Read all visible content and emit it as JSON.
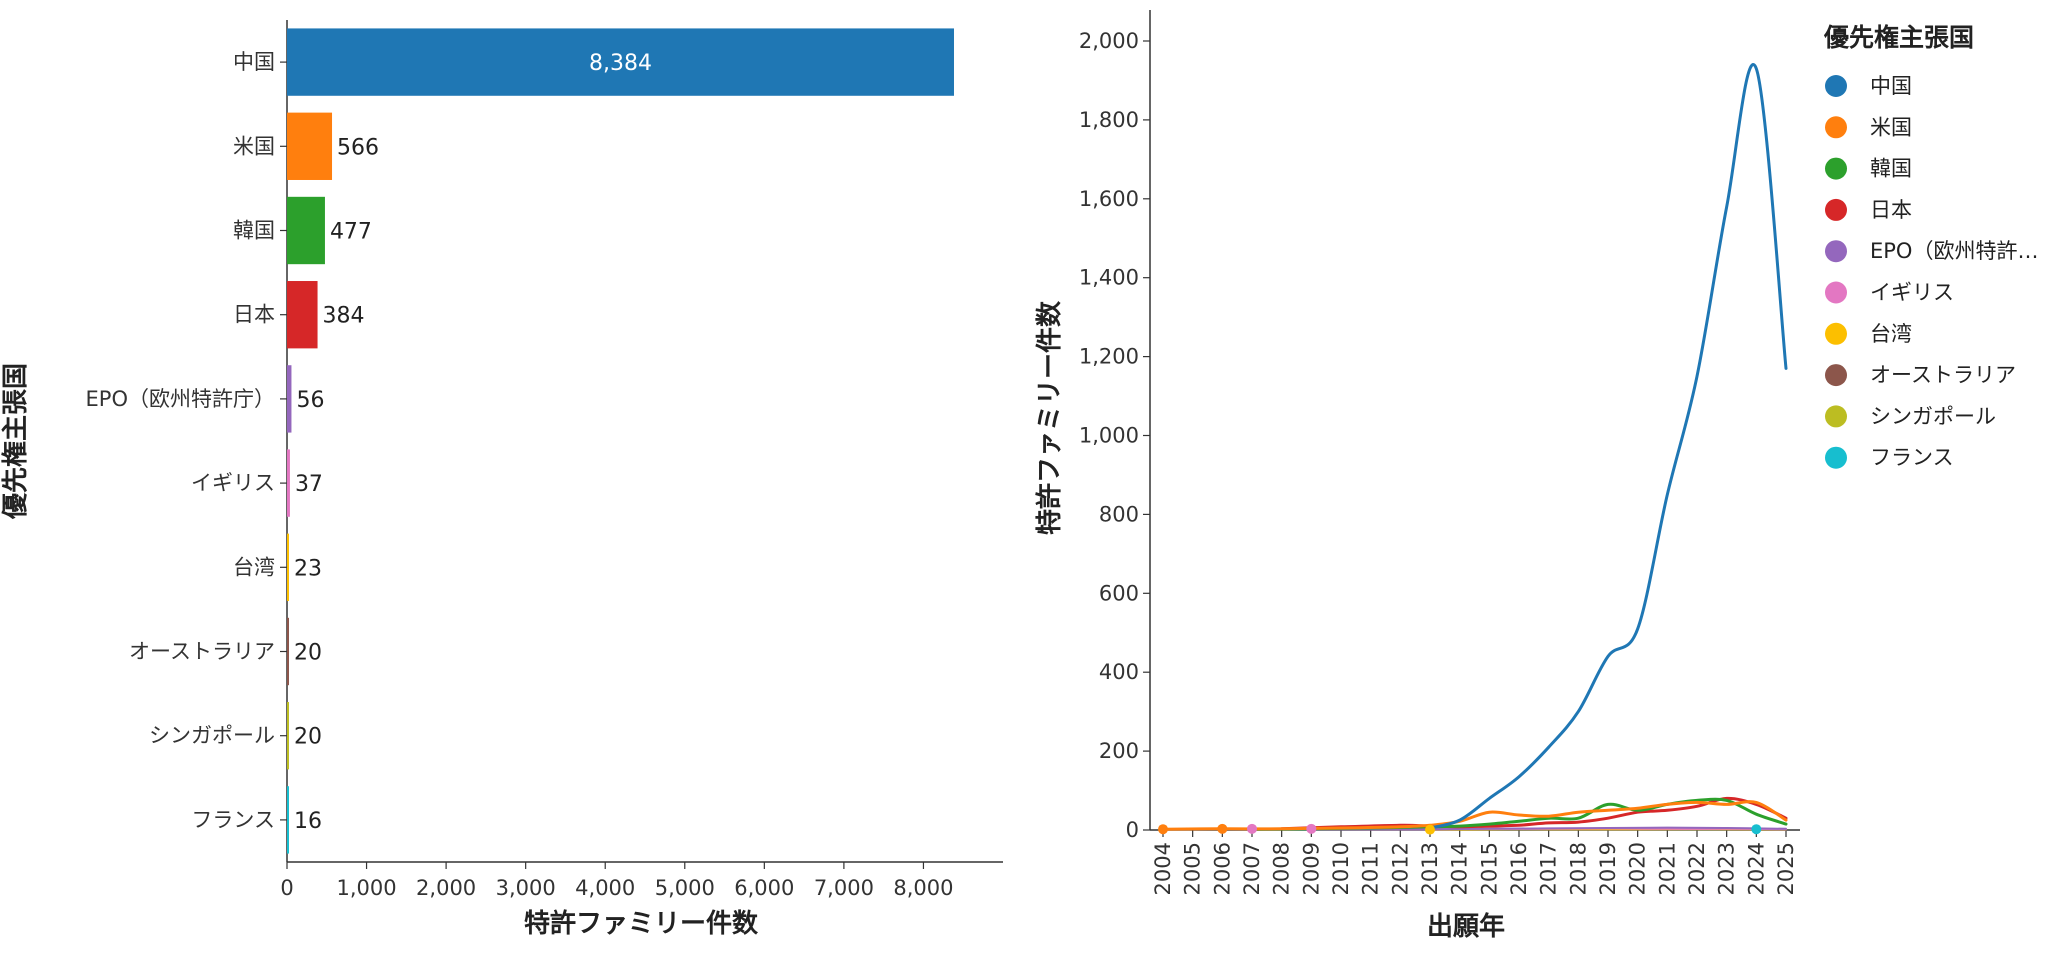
{
  "chart_data": [
    {
      "type": "bar",
      "orientation": "horizontal",
      "categories": [
        "中国",
        "米国",
        "韓国",
        "日本",
        "EPO（欧州特許庁）",
        "イギリス",
        "台湾",
        "オーストラリア",
        "シンガポール",
        "フランス"
      ],
      "values": [
        8384,
        566,
        477,
        384,
        56,
        37,
        23,
        20,
        20,
        16
      ],
      "value_labels": [
        "8,384",
        "566",
        "477",
        "384",
        "56",
        "37",
        "23",
        "20",
        "20",
        "16"
      ],
      "colors": [
        "#1f77b4",
        "#ff7f0e",
        "#2ca02c",
        "#d62728",
        "#9467bd",
        "#e377c2",
        "#fcbf00",
        "#8c564b",
        "#bcbd22",
        "#17becf"
      ],
      "xlabel": "特許ファミリー件数",
      "ylabel": "優先権主張国",
      "xlim": [
        0,
        9000
      ],
      "xticks": [
        0,
        1000,
        2000,
        3000,
        4000,
        5000,
        6000,
        7000,
        8000
      ],
      "xtick_labels": [
        "0",
        "1,000",
        "2,000",
        "3,000",
        "4,000",
        "5,000",
        "6,000",
        "7,000",
        "8,000"
      ]
    },
    {
      "type": "line",
      "x": [
        2004,
        2005,
        2006,
        2007,
        2008,
        2009,
        2010,
        2011,
        2012,
        2013,
        2014,
        2015,
        2016,
        2017,
        2018,
        2019,
        2020,
        2021,
        2022,
        2023,
        2024,
        2025
      ],
      "xtick_labels": [
        "2004",
        "2005",
        "2006",
        "2007",
        "2008",
        "2009",
        "2010",
        "2011",
        "2012",
        "2013",
        "2014",
        "2015",
        "2016",
        "2017",
        "2018",
        "2019",
        "2020",
        "2021",
        "2022",
        "2023",
        "2024",
        "2025"
      ],
      "xlabel": "出願年",
      "ylabel": "特許ファミリー件数",
      "ylim": [
        0,
        2080
      ],
      "yticks": [
        0,
        200,
        400,
        600,
        800,
        1000,
        1200,
        1400,
        1600,
        1800,
        2000
      ],
      "ytick_labels": [
        "0",
        "200",
        "400",
        "600",
        "800",
        "1,000",
        "1,200",
        "1,400",
        "1,600",
        "1,800",
        "2,000"
      ],
      "legend_title": "優先権主張国",
      "series": [
        {
          "name": "中国",
          "legend_label": "中国",
          "color": "#1f77b4",
          "width": 3,
          "points": [
            [
              2013,
              5
            ],
            [
              2014,
              25
            ],
            [
              2015,
              80
            ],
            [
              2016,
              135
            ],
            [
              2017,
              210
            ],
            [
              2018,
              300
            ],
            [
              2019,
              440
            ],
            [
              2020,
              510
            ],
            [
              2021,
              850
            ],
            [
              2022,
              1150
            ],
            [
              2023,
              1580
            ],
            [
              2024,
              1930
            ],
            [
              2025,
              1170
            ]
          ]
        },
        {
          "name": "米国",
          "legend_label": "米国",
          "color": "#ff7f0e",
          "width": 3,
          "points": [
            [
              2004,
              2
            ],
            [
              2006,
              3
            ],
            [
              2008,
              3
            ],
            [
              2010,
              5
            ],
            [
              2012,
              8
            ],
            [
              2013,
              12
            ],
            [
              2014,
              22
            ],
            [
              2015,
              45
            ],
            [
              2016,
              38
            ],
            [
              2017,
              35
            ],
            [
              2018,
              45
            ],
            [
              2019,
              50
            ],
            [
              2020,
              55
            ],
            [
              2021,
              65
            ],
            [
              2022,
              70
            ],
            [
              2023,
              65
            ],
            [
              2024,
              70
            ],
            [
              2025,
              25
            ]
          ]
        },
        {
          "name": "韓国",
          "legend_label": "韓国",
          "color": "#2ca02c",
          "width": 3,
          "points": [
            [
              2007,
              2
            ],
            [
              2009,
              3
            ],
            [
              2011,
              5
            ],
            [
              2013,
              8
            ],
            [
              2014,
              10
            ],
            [
              2015,
              15
            ],
            [
              2016,
              22
            ],
            [
              2017,
              30
            ],
            [
              2018,
              30
            ],
            [
              2019,
              65
            ],
            [
              2020,
              50
            ],
            [
              2021,
              65
            ],
            [
              2022,
              75
            ],
            [
              2023,
              75
            ],
            [
              2024,
              40
            ],
            [
              2025,
              15
            ]
          ]
        },
        {
          "name": "日本",
          "legend_label": "日本",
          "color": "#d62728",
          "width": 3,
          "points": [
            [
              2008,
              3
            ],
            [
              2010,
              8
            ],
            [
              2012,
              12
            ],
            [
              2013,
              10
            ],
            [
              2014,
              8
            ],
            [
              2015,
              10
            ],
            [
              2016,
              12
            ],
            [
              2017,
              18
            ],
            [
              2018,
              20
            ],
            [
              2019,
              30
            ],
            [
              2020,
              45
            ],
            [
              2021,
              50
            ],
            [
              2022,
              60
            ],
            [
              2023,
              80
            ],
            [
              2024,
              65
            ],
            [
              2025,
              30
            ]
          ]
        },
        {
          "name": "EPO（欧州特許庁）",
          "legend_label": "EPO（欧州特許…",
          "color": "#9467bd",
          "width": 2,
          "points": [
            [
              2009,
              2
            ],
            [
              2011,
              2
            ],
            [
              2013,
              2
            ],
            [
              2015,
              3
            ],
            [
              2017,
              4
            ],
            [
              2019,
              5
            ],
            [
              2021,
              6
            ],
            [
              2023,
              5
            ],
            [
              2025,
              3
            ]
          ]
        },
        {
          "name": "イギリス",
          "legend_label": "イギリス",
          "color": "#e377c2",
          "width": 2,
          "points": [
            [
              2007,
              3
            ],
            [
              2009,
              3
            ],
            [
              2011,
              2
            ],
            [
              2013,
              2
            ],
            [
              2015,
              3
            ],
            [
              2017,
              3
            ],
            [
              2019,
              4
            ],
            [
              2021,
              3
            ],
            [
              2023,
              3
            ],
            [
              2025,
              2
            ]
          ]
        },
        {
          "name": "台湾",
          "legend_label": "台湾",
          "color": "#fcbf00",
          "width": 2,
          "points": [
            [
              2013,
              1
            ],
            [
              2015,
              2
            ],
            [
              2017,
              2
            ],
            [
              2019,
              2
            ],
            [
              2021,
              2
            ],
            [
              2023,
              2
            ],
            [
              2025,
              2
            ]
          ]
        },
        {
          "name": "オーストラリア",
          "legend_label": "オーストラリア",
          "color": "#8c564b",
          "width": 2,
          "points": [
            [
              2009,
              2
            ],
            [
              2011,
              2
            ],
            [
              2013,
              2
            ],
            [
              2015,
              2
            ],
            [
              2017,
              2
            ],
            [
              2019,
              2
            ],
            [
              2021,
              2
            ],
            [
              2023,
              2
            ],
            [
              2025,
              1
            ]
          ]
        },
        {
          "name": "シンガポール",
          "legend_label": "シンガポール",
          "color": "#bcbd22",
          "width": 2,
          "points": [
            [
              2014,
              1
            ],
            [
              2016,
              2
            ],
            [
              2018,
              2
            ],
            [
              2020,
              2
            ],
            [
              2022,
              3
            ],
            [
              2024,
              2
            ],
            [
              2025,
              1
            ]
          ]
        },
        {
          "name": "フランス",
          "legend_label": "フランス",
          "color": "#17becf",
          "width": 2,
          "points": [
            [
              2007,
              2
            ],
            [
              2009,
              2
            ],
            [
              2011,
              2
            ],
            [
              2013,
              2
            ],
            [
              2015,
              2
            ],
            [
              2017,
              2
            ],
            [
              2019,
              2
            ],
            [
              2021,
              2
            ],
            [
              2023,
              2
            ],
            [
              2024,
              2
            ],
            [
              2025,
              1
            ]
          ]
        }
      ],
      "dots": [
        {
          "x": 2004,
          "y": 2,
          "color": "#ff7f0e"
        },
        {
          "x": 2006,
          "y": 3,
          "color": "#ff7f0e"
        },
        {
          "x": 2007,
          "y": 3,
          "color": "#e377c2"
        },
        {
          "x": 2009,
          "y": 3,
          "color": "#e377c2"
        },
        {
          "x": 2013,
          "y": 1,
          "color": "#fcbf00"
        },
        {
          "x": 2024,
          "y": 2,
          "color": "#17becf"
        }
      ]
    }
  ]
}
